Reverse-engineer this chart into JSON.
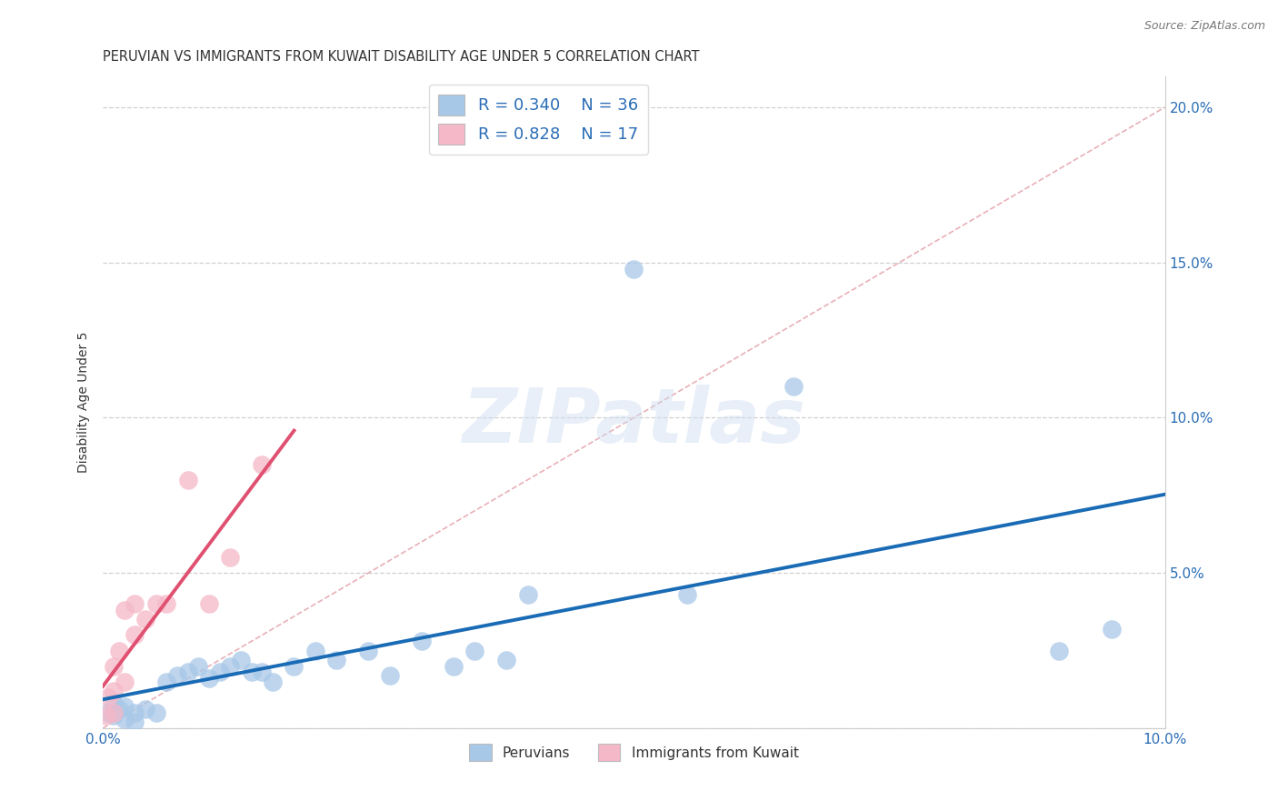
{
  "title": "PERUVIAN VS IMMIGRANTS FROM KUWAIT DISABILITY AGE UNDER 5 CORRELATION CHART",
  "source": "Source: ZipAtlas.com",
  "ylabel": "Disability Age Under 5",
  "xlim": [
    0.0,
    0.1
  ],
  "ylim": [
    0.0,
    0.21
  ],
  "background_color": "#ffffff",
  "grid_color": "#d0d0d0",
  "watermark": "ZIPatlas",
  "peru_color": "#a8c8e8",
  "peru_line_color": "#1a6bb5",
  "kuw_color": "#f5b8c8",
  "kuw_line_color": "#e05070",
  "diag_color": "#e8b0b8",
  "peru_x": [
    0.0005,
    0.001,
    0.001,
    0.0015,
    0.002,
    0.002,
    0.003,
    0.003,
    0.004,
    0.005,
    0.006,
    0.007,
    0.008,
    0.009,
    0.01,
    0.011,
    0.012,
    0.013,
    0.014,
    0.015,
    0.016,
    0.018,
    0.02,
    0.022,
    0.025,
    0.027,
    0.03,
    0.033,
    0.035,
    0.038,
    0.04,
    0.05,
    0.055,
    0.065,
    0.09,
    0.095
  ],
  "peru_y": [
    0.005,
    0.004,
    0.008,
    0.006,
    0.003,
    0.007,
    0.005,
    0.002,
    0.006,
    0.005,
    0.015,
    0.017,
    0.018,
    0.02,
    0.016,
    0.018,
    0.02,
    0.022,
    0.018,
    0.018,
    0.015,
    0.02,
    0.025,
    0.022,
    0.025,
    0.017,
    0.028,
    0.02,
    0.025,
    0.022,
    0.043,
    0.148,
    0.043,
    0.11,
    0.025,
    0.032
  ],
  "kuw_x": [
    0.0003,
    0.0005,
    0.001,
    0.001,
    0.001,
    0.0015,
    0.002,
    0.002,
    0.003,
    0.003,
    0.004,
    0.005,
    0.006,
    0.008,
    0.01,
    0.012,
    0.015
  ],
  "kuw_y": [
    0.004,
    0.01,
    0.005,
    0.012,
    0.02,
    0.025,
    0.015,
    0.038,
    0.04,
    0.03,
    0.035,
    0.04,
    0.04,
    0.08,
    0.04,
    0.055,
    0.085
  ],
  "title_fontsize": 10.5,
  "axis_label_fontsize": 10,
  "tick_fontsize": 11,
  "legend_fontsize": 13
}
